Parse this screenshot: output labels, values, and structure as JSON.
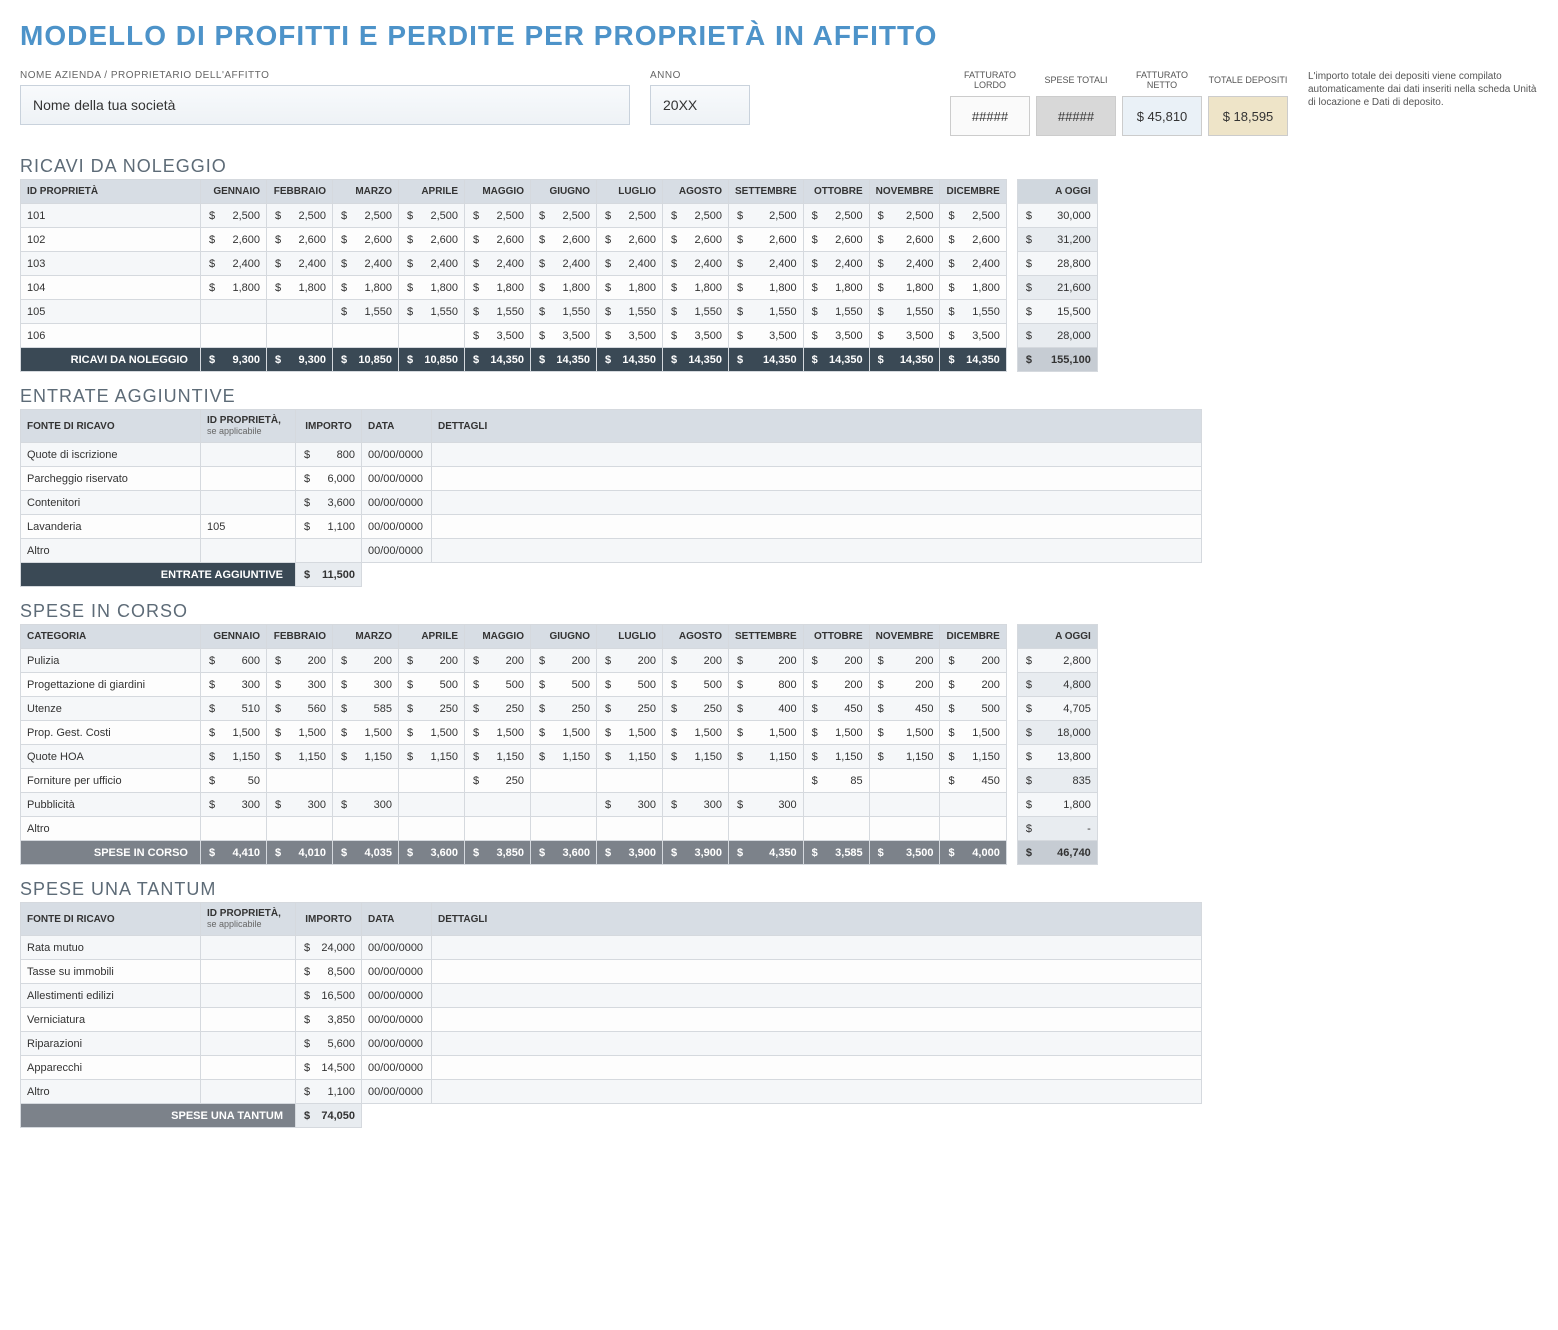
{
  "title": "MODELLO DI PROFITTI E PERDITE PER PROPRIETÀ IN AFFITTO",
  "company_label": "NOME AZIENDA / PROPRIETARIO DELL'AFFITTO",
  "company_value": "Nome della tua società",
  "year_label": "ANNO",
  "year_value": "20XX",
  "summary": {
    "gross_label": "FATTURATO LORDO",
    "gross_value": "#####",
    "exp_label": "SPESE TOTALI",
    "exp_value": "#####",
    "net_label": "FATTURATO NETTO",
    "net_value": "$ 45,810",
    "dep_label": "TOTALE DEPOSITI",
    "dep_value": "$ 18,595"
  },
  "note": "L'importo totale dei depositi viene compilato automaticamente dai dati inseriti nella scheda Unità di locazione e Dati di deposito.",
  "months": [
    "GENNAIO",
    "FEBBRAIO",
    "MARZO",
    "APRILE",
    "MAGGIO",
    "GIUGNO",
    "LUGLIO",
    "AGOSTO",
    "SETTEMBRE",
    "OTTOBRE",
    "NOVEMBRE",
    "DICEMBRE"
  ],
  "a_oggi_label": "A OGGI",
  "rental": {
    "title": "RICAVI DA NOLEGGIO",
    "id_header": "ID PROPRIETÀ",
    "rows": [
      {
        "id": "101",
        "vals": [
          "2,500",
          "2,500",
          "2,500",
          "2,500",
          "2,500",
          "2,500",
          "2,500",
          "2,500",
          "2,500",
          "2,500",
          "2,500",
          "2,500"
        ],
        "ytd": "30,000"
      },
      {
        "id": "102",
        "vals": [
          "2,600",
          "2,600",
          "2,600",
          "2,600",
          "2,600",
          "2,600",
          "2,600",
          "2,600",
          "2,600",
          "2,600",
          "2,600",
          "2,600"
        ],
        "ytd": "31,200"
      },
      {
        "id": "103",
        "vals": [
          "2,400",
          "2,400",
          "2,400",
          "2,400",
          "2,400",
          "2,400",
          "2,400",
          "2,400",
          "2,400",
          "2,400",
          "2,400",
          "2,400"
        ],
        "ytd": "28,800"
      },
      {
        "id": "104",
        "vals": [
          "1,800",
          "1,800",
          "1,800",
          "1,800",
          "1,800",
          "1,800",
          "1,800",
          "1,800",
          "1,800",
          "1,800",
          "1,800",
          "1,800"
        ],
        "ytd": "21,600"
      },
      {
        "id": "105",
        "vals": [
          "",
          "",
          "1,550",
          "1,550",
          "1,550",
          "1,550",
          "1,550",
          "1,550",
          "1,550",
          "1,550",
          "1,550",
          "1,550"
        ],
        "ytd": "15,500"
      },
      {
        "id": "106",
        "vals": [
          "",
          "",
          "",
          "",
          "3,500",
          "3,500",
          "3,500",
          "3,500",
          "3,500",
          "3,500",
          "3,500",
          "3,500"
        ],
        "ytd": "28,000"
      }
    ],
    "total_label": "RICAVI DA NOLEGGIO",
    "totals": [
      "9,300",
      "9,300",
      "10,850",
      "10,850",
      "14,350",
      "14,350",
      "14,350",
      "14,350",
      "14,350",
      "14,350",
      "14,350",
      "14,350"
    ],
    "total_ytd": "155,100"
  },
  "additional": {
    "title": "ENTRATE AGGIUNTIVE",
    "headers": {
      "src": "FONTE DI RICAVO",
      "prop": "ID PROPRIETÀ,",
      "prop_sub": "se applicabile",
      "amt": "IMPORTO",
      "date": "DATA",
      "det": "DETTAGLI"
    },
    "rows": [
      {
        "src": "Quote di iscrizione",
        "prop": "",
        "amt": "800",
        "date": "00/00/0000",
        "det": ""
      },
      {
        "src": "Parcheggio riservato",
        "prop": "",
        "amt": "6,000",
        "date": "00/00/0000",
        "det": ""
      },
      {
        "src": "Contenitori",
        "prop": "",
        "amt": "3,600",
        "date": "00/00/0000",
        "det": ""
      },
      {
        "src": "Lavanderia",
        "prop": "105",
        "amt": "1,100",
        "date": "00/00/0000",
        "det": ""
      },
      {
        "src": "Altro",
        "prop": "",
        "amt": "",
        "date": "00/00/0000",
        "det": ""
      }
    ],
    "total_label": "ENTRATE AGGIUNTIVE",
    "total": "11,500"
  },
  "ongoing": {
    "title": "SPESE IN CORSO",
    "id_header": "CATEGORIA",
    "rows": [
      {
        "id": "Pulizia",
        "vals": [
          "600",
          "200",
          "200",
          "200",
          "200",
          "200",
          "200",
          "200",
          "200",
          "200",
          "200",
          "200"
        ],
        "ytd": "2,800"
      },
      {
        "id": "Progettazione di giardini",
        "vals": [
          "300",
          "300",
          "300",
          "500",
          "500",
          "500",
          "500",
          "500",
          "800",
          "200",
          "200",
          "200"
        ],
        "ytd": "4,800"
      },
      {
        "id": "Utenze",
        "vals": [
          "510",
          "560",
          "585",
          "250",
          "250",
          "250",
          "250",
          "250",
          "400",
          "450",
          "450",
          "500"
        ],
        "ytd": "4,705"
      },
      {
        "id": "Prop. Gest. Costi",
        "vals": [
          "1,500",
          "1,500",
          "1,500",
          "1,500",
          "1,500",
          "1,500",
          "1,500",
          "1,500",
          "1,500",
          "1,500",
          "1,500",
          "1,500"
        ],
        "ytd": "18,000"
      },
      {
        "id": "Quote HOA",
        "vals": [
          "1,150",
          "1,150",
          "1,150",
          "1,150",
          "1,150",
          "1,150",
          "1,150",
          "1,150",
          "1,150",
          "1,150",
          "1,150",
          "1,150"
        ],
        "ytd": "13,800"
      },
      {
        "id": "Forniture per ufficio",
        "vals": [
          "50",
          "",
          "",
          "",
          "250",
          "",
          "",
          "",
          "",
          "85",
          "",
          "450"
        ],
        "ytd": "835"
      },
      {
        "id": "Pubblicità",
        "vals": [
          "300",
          "300",
          "300",
          "",
          "",
          "",
          "300",
          "300",
          "300",
          "",
          "",
          ""
        ],
        "ytd": "1,800"
      },
      {
        "id": "Altro",
        "vals": [
          "",
          "",
          "",
          "",
          "",
          "",
          "",
          "",
          "",
          "",
          "",
          ""
        ],
        "ytd": "-"
      }
    ],
    "total_label": "SPESE IN CORSO",
    "totals": [
      "4,410",
      "4,010",
      "4,035",
      "3,600",
      "3,850",
      "3,600",
      "3,900",
      "3,900",
      "4,350",
      "3,585",
      "3,500",
      "4,000"
    ],
    "total_ytd": "46,740"
  },
  "onetime": {
    "title": "SPESE UNA TANTUM",
    "headers": {
      "src": "FONTE DI RICAVO",
      "prop": "ID PROPRIETÀ,",
      "prop_sub": "se applicabile",
      "amt": "IMPORTO",
      "date": "DATA",
      "det": "DETTAGLI"
    },
    "rows": [
      {
        "src": "Rata mutuo",
        "prop": "",
        "amt": "24,000",
        "date": "00/00/0000",
        "det": ""
      },
      {
        "src": "Tasse su immobili",
        "prop": "",
        "amt": "8,500",
        "date": "00/00/0000",
        "det": ""
      },
      {
        "src": "Allestimenti edilizi",
        "prop": "",
        "amt": "16,500",
        "date": "00/00/0000",
        "det": ""
      },
      {
        "src": "Verniciatura",
        "prop": "",
        "amt": "3,850",
        "date": "00/00/0000",
        "det": ""
      },
      {
        "src": "Riparazioni",
        "prop": "",
        "amt": "5,600",
        "date": "00/00/0000",
        "det": ""
      },
      {
        "src": "Apparecchi",
        "prop": "",
        "amt": "14,500",
        "date": "00/00/0000",
        "det": ""
      },
      {
        "src": "Altro",
        "prop": "",
        "amt": "1,100",
        "date": "00/00/0000",
        "det": ""
      }
    ],
    "total_label": "SPESE UNA TANTUM",
    "total": "74,050"
  }
}
